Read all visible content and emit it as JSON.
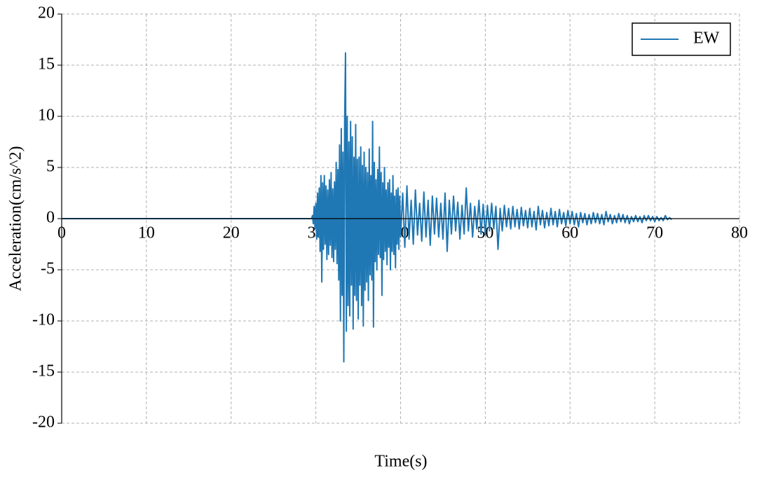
{
  "chart_data": {
    "type": "line",
    "xlabel": "Time(s)",
    "ylabel": "Acceleration(cm/s^2)",
    "xlim": [
      0,
      80
    ],
    "xticks": [
      0,
      10,
      20,
      30,
      40,
      50,
      60,
      70,
      80
    ],
    "ylim": [
      -20,
      20
    ],
    "yticks": [
      20,
      15,
      10,
      5,
      0,
      -5,
      -10,
      -15,
      -20
    ],
    "grid": true,
    "legend": "upper right",
    "x": [
      0,
      29.5,
      29.6,
      29.7,
      29.8,
      29.9,
      30,
      30.1,
      30.2,
      30.3,
      30.4,
      30.5,
      30.6,
      30.7,
      30.8,
      30.9,
      31,
      31.1,
      31.2,
      31.3,
      31.4,
      31.5,
      31.6,
      31.7,
      31.8,
      31.9,
      32,
      32.1,
      32.2,
      32.3,
      32.4,
      32.5,
      32.6,
      32.7,
      32.8,
      32.9,
      33,
      33.1,
      33.2,
      33.3,
      33.4,
      33.5,
      33.6,
      33.7,
      33.8,
      33.9,
      34,
      34.1,
      34.2,
      34.3,
      34.4,
      34.5,
      34.6,
      34.7,
      34.8,
      34.9,
      35,
      35.1,
      35.2,
      35.3,
      35.4,
      35.5,
      35.6,
      35.7,
      35.8,
      35.9,
      36,
      36.1,
      36.2,
      36.3,
      36.4,
      36.5,
      36.6,
      36.7,
      36.8,
      36.9,
      37,
      37.1,
      37.2,
      37.3,
      37.4,
      37.5,
      37.6,
      37.7,
      37.8,
      37.9,
      38,
      38.1,
      38.2,
      38.3,
      38.4,
      38.5,
      38.6,
      38.7,
      38.8,
      38.9,
      39,
      39.1,
      39.2,
      39.3,
      39.4,
      39.5,
      39.6,
      39.7,
      39.8,
      39.9,
      40,
      40.25,
      40.5,
      40.75,
      41,
      41.25,
      41.5,
      41.75,
      42,
      42.25,
      42.5,
      42.75,
      43,
      43.25,
      43.5,
      43.75,
      44,
      44.25,
      44.5,
      44.75,
      45,
      45.25,
      45.5,
      45.75,
      46,
      46.25,
      46.5,
      46.75,
      47,
      47.25,
      47.5,
      47.75,
      48,
      48.25,
      48.5,
      48.75,
      49,
      49.25,
      49.5,
      49.75,
      50,
      50.25,
      50.5,
      50.75,
      51,
      51.25,
      51.5,
      51.75,
      52,
      52.25,
      52.5,
      52.75,
      53,
      53.25,
      53.5,
      53.75,
      54,
      54.25,
      54.5,
      54.75,
      55,
      55.25,
      55.5,
      55.75,
      56,
      56.25,
      56.5,
      56.75,
      57,
      57.25,
      57.5,
      57.75,
      58,
      58.25,
      58.5,
      58.75,
      59,
      59.25,
      59.5,
      59.75,
      60,
      60.25,
      60.5,
      60.75,
      61,
      61.25,
      61.5,
      61.75,
      62,
      62.25,
      62.5,
      62.75,
      63,
      63.25,
      63.5,
      63.75,
      64,
      64.25,
      64.5,
      64.75,
      65,
      65.25,
      65.5,
      65.75,
      66,
      66.25,
      66.5,
      66.75,
      67,
      67.25,
      67.5,
      67.75,
      68,
      68.25,
      68.5,
      68.75,
      69,
      69.25,
      69.5,
      69.75,
      70,
      70.25,
      70.5,
      70.75,
      71,
      71.25,
      71.5,
      71.75,
      72
    ],
    "series": [
      {
        "name": "EW",
        "color": "#1f77b4",
        "values": [
          0,
          0,
          0.3,
          -0.5,
          1.2,
          -1.0,
          1.5,
          -2.0,
          2.5,
          -1.8,
          3.0,
          -3.2,
          4.2,
          -6.2,
          3.5,
          -3.0,
          4.2,
          -2.5,
          3.2,
          -4.0,
          2.8,
          -3.5,
          3.8,
          -2.6,
          4.5,
          -3.8,
          2.9,
          -4.2,
          3.6,
          -3.0,
          5.5,
          -4.4,
          4.8,
          -6.0,
          7.2,
          -10.0,
          8.8,
          -7.5,
          6.5,
          -14.0,
          9.5,
          16.2,
          -11.0,
          10.0,
          -8.5,
          7.5,
          -9.5,
          9.5,
          -6.5,
          8.0,
          -10.8,
          6.0,
          -7.5,
          9.2,
          -8.0,
          5.8,
          -9.8,
          6.0,
          -6.5,
          7.0,
          -8.5,
          5.2,
          -10.5,
          6.5,
          -7.0,
          5.0,
          -6.2,
          4.5,
          -8.0,
          6.8,
          -5.5,
          4.2,
          -6.0,
          9.5,
          -10.6,
          5.5,
          -4.2,
          3.8,
          -5.0,
          4.8,
          -3.5,
          7.0,
          -3.8,
          4.5,
          -7.5,
          3.5,
          -4.0,
          5.0,
          -3.2,
          2.8,
          -4.5,
          3.5,
          -2.8,
          3.8,
          -5.0,
          2.5,
          -3.2,
          4.2,
          -3.5,
          2.2,
          -4.8,
          2.8,
          -2.5,
          3.0,
          -3.0,
          2.2,
          -1.8,
          2.5,
          -2.8,
          3.2,
          -2.0,
          1.8,
          -2.5,
          2.8,
          -1.6,
          1.5,
          -2.2,
          2.6,
          -1.8,
          1.8,
          -2.6,
          2.2,
          -1.5,
          2.0,
          -1.8,
          1.5,
          -2.0,
          2.5,
          -3.2,
          1.8,
          -1.5,
          2.2,
          -1.2,
          1.6,
          -2.0,
          1.3,
          -1.5,
          3.0,
          -1.2,
          1.5,
          -1.8,
          1.2,
          -1.0,
          1.8,
          -1.5,
          1.4,
          -1.6,
          1.3,
          -1.2,
          1.5,
          -1.0,
          1.2,
          -3.0,
          1.0,
          -1.2,
          1.3,
          -0.8,
          1.0,
          -1.0,
          1.2,
          -0.8,
          0.9,
          -1.0,
          1.1,
          -0.7,
          0.8,
          -0.9,
          1.0,
          -0.8,
          0.7,
          -1.1,
          1.2,
          -0.6,
          0.8,
          -0.9,
          0.6,
          -0.7,
          1.0,
          -0.6,
          0.7,
          -0.8,
          0.9,
          -0.5,
          0.6,
          -0.7,
          0.8,
          -0.5,
          0.7,
          -0.6,
          0.5,
          -0.8,
          0.6,
          -0.4,
          0.5,
          -0.6,
          0.4,
          -0.5,
          0.6,
          -0.4,
          0.5,
          -0.5,
          0.4,
          -0.6,
          0.7,
          -0.3,
          0.4,
          -0.5,
          0.3,
          -0.4,
          0.5,
          -0.3,
          0.4,
          -0.4,
          0.3,
          -0.5,
          0.2,
          -0.3,
          0.3,
          -0.3,
          0.2,
          -0.4,
          0.3,
          -0.2,
          0.3,
          -0.2,
          0.2,
          -0.3,
          0.2,
          -0.2,
          0.1,
          -0.2,
          0.3,
          -0.1,
          0.1,
          -0.1
        ]
      }
    ]
  }
}
